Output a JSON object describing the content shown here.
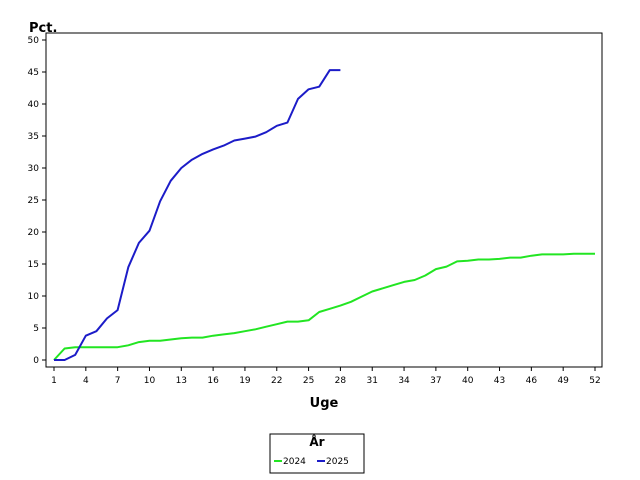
{
  "chart_data": {
    "type": "line",
    "xlabel": "Uge",
    "ylabel": "Pct.",
    "xlim": [
      1,
      52
    ],
    "ylim": [
      0,
      50
    ],
    "x_ticks": [
      1,
      4,
      7,
      10,
      13,
      16,
      19,
      22,
      25,
      28,
      31,
      34,
      37,
      40,
      43,
      46,
      49,
      52
    ],
    "y_ticks": [
      0,
      5,
      10,
      15,
      20,
      25,
      30,
      35,
      40,
      45,
      50
    ],
    "grid": false,
    "legend": {
      "title": "År",
      "placement": "bottom-center"
    },
    "series": [
      {
        "name": "2024",
        "color": "#22e522",
        "x": [
          1,
          2,
          3,
          4,
          5,
          6,
          7,
          8,
          9,
          10,
          11,
          12,
          13,
          14,
          15,
          16,
          17,
          18,
          19,
          20,
          21,
          22,
          23,
          24,
          25,
          26,
          27,
          28,
          29,
          30,
          31,
          32,
          33,
          34,
          35,
          36,
          37,
          38,
          39,
          40,
          41,
          42,
          43,
          44,
          45,
          46,
          47,
          48,
          49,
          50,
          51,
          52
        ],
        "values": [
          0,
          1.8,
          2,
          2,
          2,
          2,
          2,
          2.3,
          2.8,
          3,
          3,
          3.2,
          3.4,
          3.5,
          3.5,
          3.8,
          4,
          4.2,
          4.5,
          4.8,
          5.2,
          5.6,
          6,
          6,
          6.2,
          7.5,
          8,
          8.5,
          9.1,
          9.9,
          10.7,
          11.2,
          11.7,
          12.2,
          12.5,
          13.2,
          14.2,
          14.6,
          15.4,
          15.5,
          15.7,
          15.7,
          15.8,
          16,
          16,
          16.3,
          16.5,
          16.5,
          16.5,
          16.6,
          16.6,
          16.6
        ]
      },
      {
        "name": "2025",
        "color": "#1c1cc8",
        "x": [
          1,
          2,
          3,
          4,
          5,
          6,
          7,
          8,
          9,
          10,
          11,
          12,
          13,
          14,
          15,
          16,
          17,
          18,
          19,
          20,
          21,
          22,
          23,
          24,
          25,
          26,
          27,
          28
        ],
        "values": [
          0,
          0,
          0.8,
          3.8,
          4.5,
          6.5,
          7.8,
          14.5,
          18.3,
          20.2,
          24.8,
          28,
          30,
          31.3,
          32.2,
          32.9,
          33.5,
          34.3,
          34.6,
          34.9,
          35.6,
          36.6,
          37.1,
          40.8,
          42.3,
          42.7,
          45.3,
          45.3
        ]
      }
    ]
  }
}
